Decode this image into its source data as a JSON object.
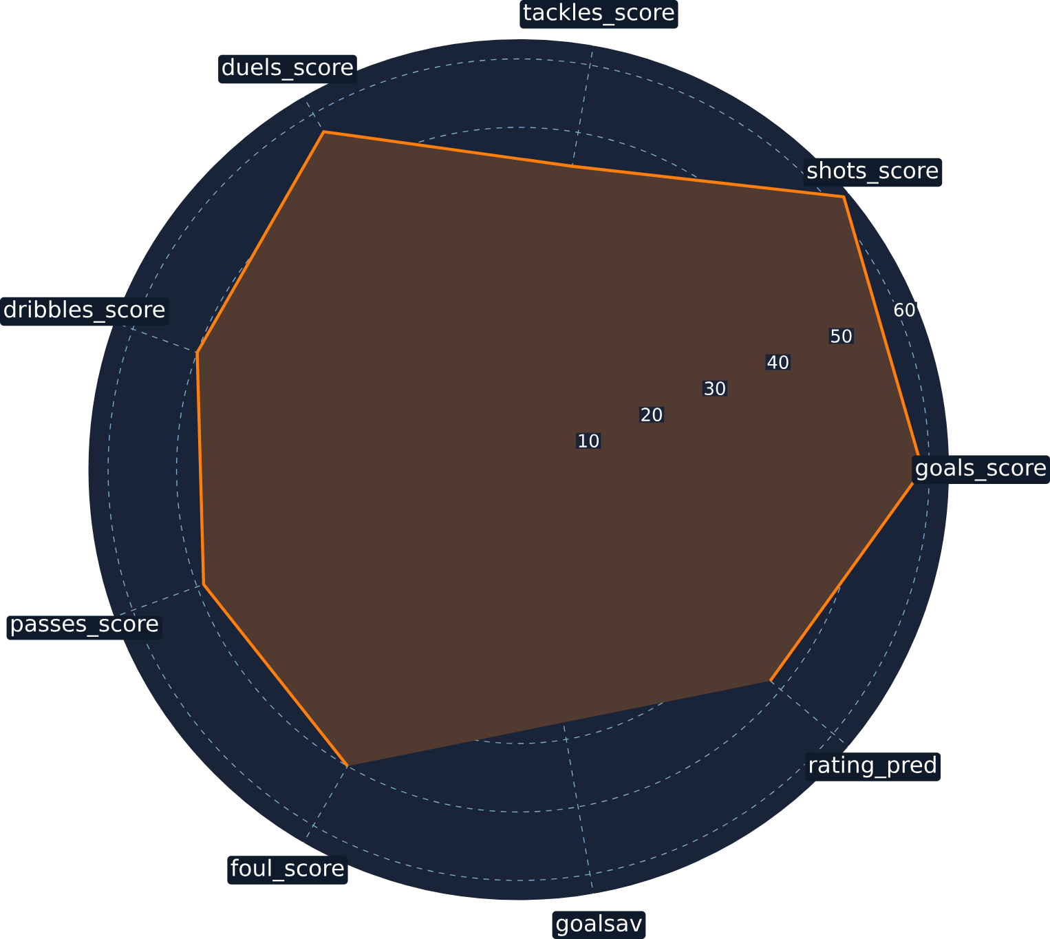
{
  "chart_data": {
    "type": "radar",
    "categories": [
      "tackles_score",
      "shots_score",
      "goals_score",
      "rating_pred",
      "goalsav",
      "foul_score",
      "passes_score",
      "dribbles_score",
      "duels_score"
    ],
    "series": [
      {
        "color": "#ff7f0e",
        "values": [
          45,
          62,
          59,
          48,
          null,
          50,
          49,
          50,
          57
        ]
      }
    ],
    "ylim": [
      0,
      63
    ],
    "yticks": [
      10,
      20,
      30,
      40,
      50,
      60
    ],
    "grid": true
  }
}
